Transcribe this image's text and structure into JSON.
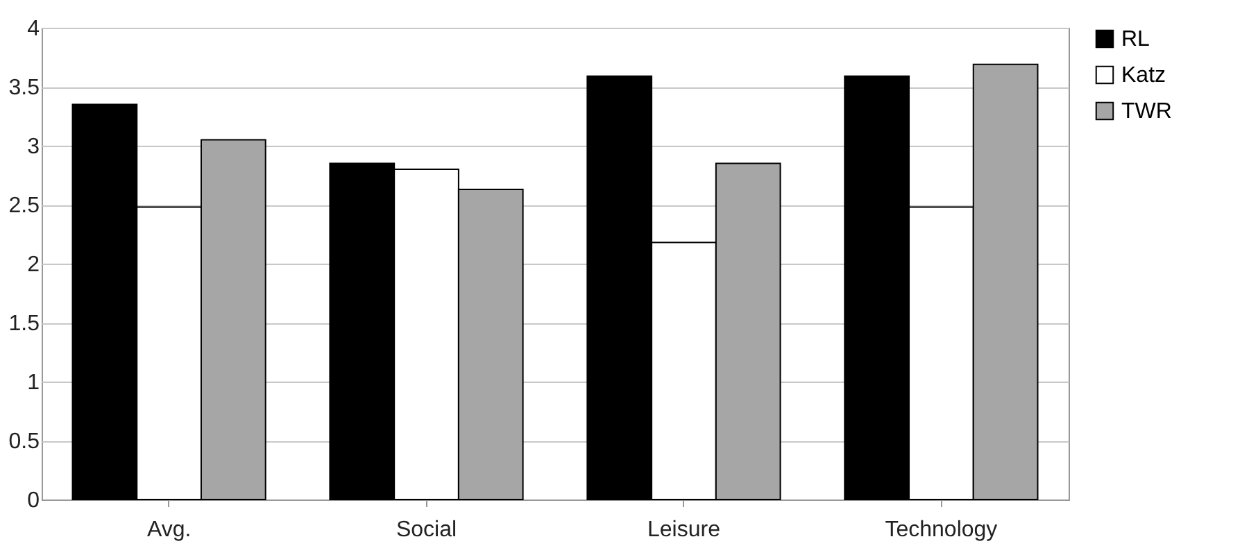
{
  "chart_data": {
    "type": "bar",
    "categories": [
      "Avg.",
      "Social",
      "Leisure",
      "Technology"
    ],
    "series": [
      {
        "name": "RL",
        "color": "#000000",
        "values": [
          3.35,
          2.85,
          3.59,
          3.59
        ]
      },
      {
        "name": "Katz",
        "color": "#ffffff",
        "values": [
          2.48,
          2.8,
          2.18,
          2.48
        ]
      },
      {
        "name": "TWR",
        "color": "#a6a6a6",
        "values": [
          3.05,
          2.63,
          2.85,
          3.69
        ]
      }
    ],
    "ylim": [
      0,
      4
    ],
    "yticks": [
      0,
      0.5,
      1,
      1.5,
      2,
      2.5,
      3,
      3.5,
      4
    ],
    "grid": "y",
    "legend": "right"
  }
}
